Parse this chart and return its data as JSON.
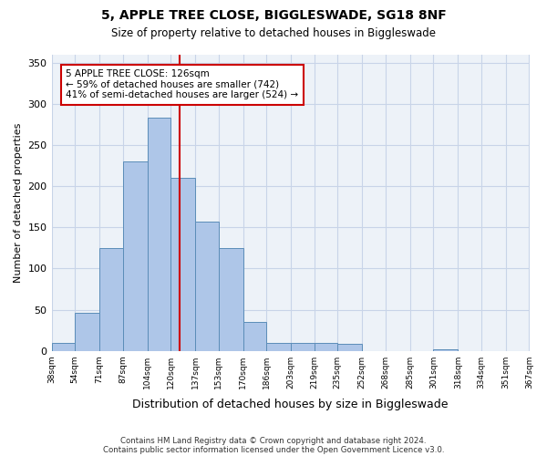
{
  "title": "5, APPLE TREE CLOSE, BIGGLESWADE, SG18 8NF",
  "subtitle": "Size of property relative to detached houses in Biggleswade",
  "xlabel": "Distribution of detached houses by size in Biggleswade",
  "ylabel": "Number of detached properties",
  "footnote1": "Contains HM Land Registry data © Crown copyright and database right 2024.",
  "footnote2": "Contains public sector information licensed under the Open Government Licence v3.0.",
  "annotation_line1": "5 APPLE TREE CLOSE: 126sqm",
  "annotation_line2": "← 59% of detached houses are smaller (742)",
  "annotation_line3": "41% of semi-detached houses are larger (524) →",
  "property_size": 126,
  "bin_edges": [
    38,
    54,
    71,
    87,
    104,
    120,
    137,
    153,
    170,
    186,
    203,
    219,
    235,
    252,
    268,
    285,
    301,
    318,
    334,
    351,
    367
  ],
  "bar_heights": [
    10,
    46,
    125,
    230,
    283,
    210,
    157,
    125,
    35,
    10,
    10,
    10,
    8,
    0,
    0,
    0,
    2,
    0,
    0,
    0
  ],
  "bar_color": "#aec6e8",
  "bar_edge_color": "#5b8db8",
  "vline_color": "#cc0000",
  "annotation_box_color": "#cc0000",
  "grid_color": "#c8d4e8",
  "background_color": "#edf2f8",
  "ylim": [
    0,
    360
  ],
  "yticks": [
    0,
    50,
    100,
    150,
    200,
    250,
    300,
    350
  ]
}
